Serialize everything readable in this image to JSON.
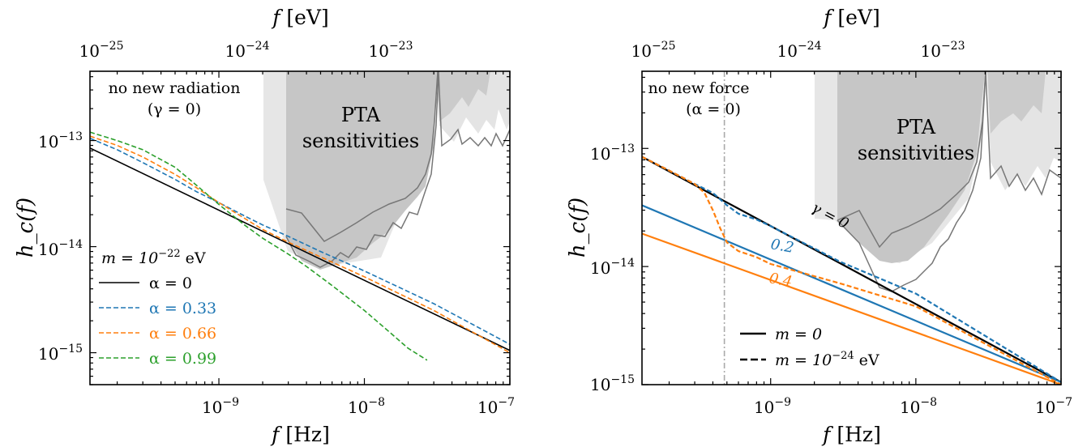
{
  "chart_data": [
    {
      "type": "line",
      "x_scale": "log",
      "y_scale": "log",
      "xlim": [
        1.3e-10,
        1e-07
      ],
      "ylim": [
        5e-16,
        4.5e-13
      ],
      "xlabel": "f [Hz]",
      "xlabel_pre": "f",
      "xlabel_unit": "[Hz]",
      "top_xlabel": "f [eV]",
      "top_xlabel_pre": "f",
      "top_xlabel_unit": "[eV]",
      "ylabel": "h_c(f)",
      "x_ticks": [
        {
          "base": "10",
          "exp": "−9"
        },
        {
          "base": "10",
          "exp": "−8"
        },
        {
          "base": "10",
          "exp": "−7"
        }
      ],
      "top_ticks": [
        {
          "base": "10",
          "exp": "−25"
        },
        {
          "base": "10",
          "exp": "−24"
        },
        {
          "base": "10",
          "exp": "−23"
        }
      ],
      "y_ticks": [
        {
          "base": "10",
          "exp": "−13"
        },
        {
          "base": "10",
          "exp": "−14"
        },
        {
          "base": "10",
          "exp": "−15"
        }
      ],
      "annotation_line1": "no new radiation",
      "annotation_line2": "(γ = 0)",
      "pta_label_line1": "PTA",
      "pta_label_line2": "sensitivities",
      "legend_title_pre": "m = 10",
      "legend_title_exp": "−22",
      "legend_title_post": " eV",
      "legend_entries": [
        "α = 0",
        "α = 0.33",
        "α = 0.66",
        "α = 0.99"
      ],
      "series": [
        {
          "name": "α = 0",
          "color": "#000000",
          "style": "solid",
          "x": [
            1.3e-10,
            1e-07
          ],
          "y": [
            8.5e-14,
            1.05e-15
          ]
        },
        {
          "name": "α = 0.33",
          "color": "#1f77b4",
          "style": "dashed",
          "x": [
            1.3e-10,
            2e-10,
            3e-10,
            5e-10,
            7e-10,
            1e-09,
            1.5e-09,
            2e-09,
            3e-09,
            5e-09,
            1e-08,
            3e-08,
            1e-07
          ],
          "y": [
            1.05e-13,
            8.2e-14,
            6.2e-14,
            4.3e-14,
            3.3e-14,
            2.6e-14,
            1.95e-14,
            1.6e-14,
            1.25e-14,
            9e-15,
            5.9e-15,
            2.9e-15,
            1.2e-15
          ]
        },
        {
          "name": "α = 0.66",
          "color": "#ff7f0e",
          "style": "dashed",
          "x": [
            1.3e-10,
            2e-10,
            3e-10,
            5e-10,
            7e-10,
            1e-09,
            1.5e-09,
            2e-09,
            3e-09,
            5e-09,
            1e-08,
            3e-08,
            1e-07
          ],
          "y": [
            1.1e-13,
            9e-14,
            7e-14,
            4.8e-14,
            3.6e-14,
            2.6e-14,
            1.85e-14,
            1.45e-14,
            1.1e-14,
            8e-15,
            5.2e-15,
            2.5e-15,
            1e-15
          ]
        },
        {
          "name": "α = 0.99",
          "color": "#2ca02c",
          "style": "dashed",
          "x": [
            1.3e-10,
            2e-10,
            3e-10,
            5e-10,
            7e-10,
            1e-09,
            1.5e-09,
            2e-09,
            3e-09,
            4e-09,
            6e-09,
            1e-08,
            1.5e-08,
            2e-08,
            2.7e-08
          ],
          "y": [
            1.2e-13,
            1e-13,
            8.2e-14,
            5.6e-14,
            3.8e-14,
            2.5e-14,
            1.6e-14,
            1.2e-14,
            8.5e-15,
            6.5e-15,
            4.3e-15,
            2.5e-15,
            1.55e-15,
            1.1e-15,
            8.5e-16
          ]
        }
      ]
    },
    {
      "type": "line",
      "x_scale": "log",
      "y_scale": "log",
      "xlim": [
        1.3e-10,
        1e-07
      ],
      "ylim": [
        1e-15,
        4.5e-13
      ],
      "xlabel": "f [Hz]",
      "xlabel_pre": "f",
      "xlabel_unit": "[Hz]",
      "top_xlabel": "f [eV]",
      "top_xlabel_pre": "f",
      "top_xlabel_unit": "[eV]",
      "ylabel": "h_c(f)",
      "x_ticks": [
        {
          "base": "10",
          "exp": "−9"
        },
        {
          "base": "10",
          "exp": "−8"
        },
        {
          "base": "10",
          "exp": "−7"
        }
      ],
      "top_ticks": [
        {
          "base": "10",
          "exp": "−25"
        },
        {
          "base": "10",
          "exp": "−24"
        },
        {
          "base": "10",
          "exp": "−23"
        }
      ],
      "y_ticks": [
        {
          "base": "10",
          "exp": "−13"
        },
        {
          "base": "10",
          "exp": "−14"
        },
        {
          "base": "10",
          "exp": "−15"
        }
      ],
      "annotation_line1": "no new force",
      "annotation_line2": "(α = 0)",
      "pta_label_line1": "PTA",
      "pta_label_line2": "sensitivities",
      "curve_labels": [
        "γ = 0",
        "0.2",
        "0.4"
      ],
      "legend_entries": [
        {
          "pre": "m = 0",
          "exp": "",
          "post": ""
        },
        {
          "pre": "m = 10",
          "exp": "−24",
          "post": " eV"
        }
      ],
      "series": [
        {
          "name": "γ = 0",
          "color": "#000000",
          "style": "solid",
          "x": [
            1.3e-10,
            1e-07
          ],
          "y": [
            8.5e-14,
            1.05e-15
          ]
        },
        {
          "name": "0.2",
          "color": "#1f77b4",
          "style": "solid",
          "x": [
            1.3e-10,
            1e-07
          ],
          "y": [
            3.3e-14,
            1.05e-15
          ]
        },
        {
          "name": "0.4",
          "color": "#ff7f0e",
          "style": "solid",
          "x": [
            1.3e-10,
            1e-07
          ],
          "y": [
            1.9e-14,
            1e-15
          ]
        },
        {
          "name": "0.2",
          "color": "#1f77b4",
          "style": "dashed",
          "x": [
            1.3e-10,
            2e-10,
            3e-10,
            4e-10,
            5e-10,
            6e-10,
            8e-10,
            1e-09,
            3e-09,
            1e-08,
            1e-07
          ],
          "y": [
            8.5e-14,
            6.5e-14,
            5e-14,
            4.2e-14,
            3.3e-14,
            2.8e-14,
            2.5e-14,
            2.2e-14,
            1.1e-14,
            5.9e-15,
            1.05e-15
          ]
        },
        {
          "name": "0.4",
          "color": "#ff7f0e",
          "style": "dashed",
          "x": [
            1.3e-10,
            2e-10,
            3e-10,
            3.5e-10,
            4e-10,
            4.5e-10,
            5e-10,
            6e-10,
            8e-10,
            1e-09,
            3e-09,
            1e-08,
            1e-07
          ],
          "y": [
            8.5e-14,
            6.5e-14,
            5e-14,
            4.2e-14,
            3e-14,
            2.1e-14,
            1.6e-14,
            1.35e-14,
            1.2e-14,
            1.05e-14,
            7.2e-15,
            4.6e-15,
            1e-15
          ]
        }
      ],
      "vline_x": 4.8e-10
    }
  ]
}
